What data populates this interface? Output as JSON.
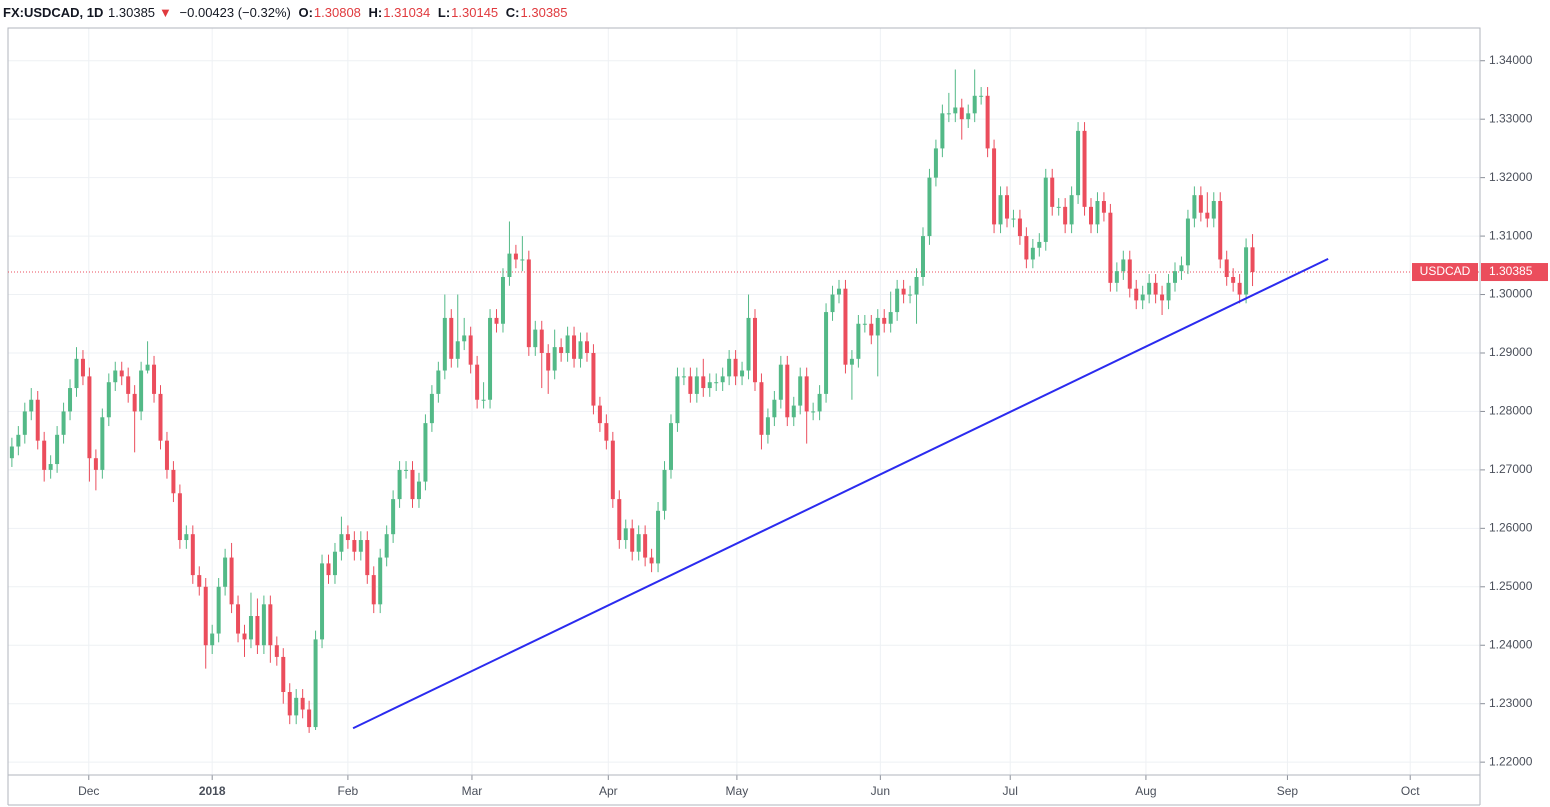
{
  "chart_data": {
    "type": "candlestick",
    "title": "FX:USDCAD, 1D",
    "last": 1.30385,
    "change": "−0.00423 (−0.32%)",
    "ohlc_labels": [
      "O:",
      "H:",
      "L:",
      "C:"
    ],
    "ohlc": [
      1.30808,
      1.31034,
      1.30145,
      1.30385
    ],
    "up_color": "#53b987",
    "down_color": "#eb4d5c",
    "grid": true,
    "ylim": [
      1.2178,
      1.3456
    ],
    "yticks": [
      {
        "value": 1.22,
        "label": "1.22000"
      },
      {
        "value": 1.23,
        "label": "1.23000"
      },
      {
        "value": 1.24,
        "label": "1.24000"
      },
      {
        "value": 1.25,
        "label": "1.25000"
      },
      {
        "value": 1.26,
        "label": "1.26000"
      },
      {
        "value": 1.27,
        "label": "1.27000"
      },
      {
        "value": 1.28,
        "label": "1.28000"
      },
      {
        "value": 1.29,
        "label": "1.29000"
      },
      {
        "value": 1.3,
        "label": "1.30000"
      },
      {
        "value": 1.31,
        "label": "1.31000"
      },
      {
        "value": 1.32,
        "label": "1.32000"
      },
      {
        "value": 1.33,
        "label": "1.33000"
      },
      {
        "value": 1.34,
        "label": "1.34000"
      }
    ],
    "xlim": [
      -0.6,
      227.2
    ],
    "xticks": [
      {
        "value": 11.9,
        "label": "Dec"
      },
      {
        "value": 31.0,
        "label": "2018"
      },
      {
        "value": 52.0,
        "label": "Feb"
      },
      {
        "value": 71.2,
        "label": "Mar"
      },
      {
        "value": 92.3,
        "label": "Apr"
      },
      {
        "value": 112.2,
        "label": "May"
      },
      {
        "value": 134.4,
        "label": "Jun"
      },
      {
        "value": 154.5,
        "label": "Jul"
      },
      {
        "value": 175.5,
        "label": "Aug"
      },
      {
        "value": 197.4,
        "label": "Sep"
      },
      {
        "value": 216.4,
        "label": "Oct"
      }
    ],
    "open": [
      1.272,
      1.274,
      1.276,
      1.28,
      1.282,
      1.275,
      1.27,
      1.271,
      1.276,
      1.28,
      1.284,
      1.289,
      1.286,
      1.272,
      1.27,
      1.279,
      1.285,
      1.287,
      1.286,
      1.283,
      1.28,
      1.287,
      1.288,
      1.283,
      1.275,
      1.27,
      1.266,
      1.258,
      1.259,
      1.252,
      1.25,
      1.24,
      1.242,
      1.25,
      1.255,
      1.247,
      1.242,
      1.241,
      1.245,
      1.24,
      1.247,
      1.24,
      1.238,
      1.232,
      1.228,
      1.231,
      1.229,
      1.226,
      1.241,
      1.254,
      1.252,
      1.256,
      1.259,
      1.258,
      1.256,
      1.258,
      1.252,
      1.247,
      1.255,
      1.259,
      1.265,
      1.27,
      1.27,
      1.265,
      1.268,
      1.278,
      1.283,
      1.287,
      1.296,
      1.289,
      1.292,
      1.293,
      1.288,
      1.282,
      1.282,
      1.296,
      1.295,
      1.303,
      1.307,
      1.306,
      1.306,
      1.291,
      1.294,
      1.29,
      1.287,
      1.291,
      1.29,
      1.293,
      1.289,
      1.292,
      1.29,
      1.281,
      1.278,
      1.275,
      1.265,
      1.258,
      1.26,
      1.256,
      1.259,
      1.255,
      1.254,
      1.263,
      1.27,
      1.278,
      1.286,
      1.286,
      1.283,
      1.286,
      1.284,
      1.285,
      1.285,
      1.286,
      1.289,
      1.286,
      1.287,
      1.296,
      1.285,
      1.276,
      1.279,
      1.282,
      1.288,
      1.279,
      1.281,
      1.286,
      1.28,
      1.28,
      1.283,
      1.297,
      1.3,
      1.301,
      1.288,
      1.289,
      1.295,
      1.295,
      1.293,
      1.296,
      1.295,
      1.297,
      1.301,
      1.3,
      1.3,
      1.303,
      1.31,
      1.32,
      1.325,
      1.331,
      1.331,
      1.332,
      1.33,
      1.331,
      1.334,
      1.334,
      1.325,
      1.312,
      1.317,
      1.313,
      1.313,
      1.31,
      1.306,
      1.308,
      1.309,
      1.32,
      1.315,
      1.315,
      1.312,
      1.317,
      1.328,
      1.315,
      1.312,
      1.316,
      1.314,
      1.302,
      1.304,
      1.306,
      1.301,
      1.299,
      1.3,
      1.302,
      1.3,
      1.299,
      1.302,
      1.304,
      1.305,
      1.313,
      1.317,
      1.314,
      1.313,
      1.316,
      1.306,
      1.303,
      1.302,
      1.3,
      1.30808
    ],
    "high": [
      1.2755,
      1.2775,
      1.2815,
      1.284,
      1.2835,
      1.2765,
      1.2725,
      1.2775,
      1.2815,
      1.2855,
      1.291,
      1.2905,
      1.2875,
      1.2735,
      1.2805,
      1.2865,
      1.2885,
      1.2885,
      1.2875,
      1.2845,
      1.2885,
      1.292,
      1.2895,
      1.2845,
      1.2765,
      1.2715,
      1.2675,
      1.2605,
      1.2605,
      1.2535,
      1.2515,
      1.2435,
      1.2515,
      1.2565,
      1.2575,
      1.2485,
      1.2435,
      1.249,
      1.248,
      1.2485,
      1.2485,
      1.2415,
      1.2395,
      1.2335,
      1.2325,
      1.2325,
      1.2305,
      1.2425,
      1.2555,
      1.2555,
      1.2575,
      1.262,
      1.2605,
      1.2595,
      1.2595,
      1.2595,
      1.2535,
      1.2565,
      1.2605,
      1.2665,
      1.2715,
      1.2715,
      1.2715,
      1.2695,
      1.2795,
      1.2845,
      1.2885,
      1.3,
      1.2975,
      1.3,
      1.296,
      1.2945,
      1.2895,
      1.285,
      1.2975,
      1.2975,
      1.3045,
      1.3125,
      1.3085,
      1.31,
      1.3075,
      1.2955,
      1.2955,
      1.2915,
      1.294,
      1.2925,
      1.2945,
      1.2945,
      1.2935,
      1.2935,
      1.2915,
      1.2825,
      1.2795,
      1.2765,
      1.2665,
      1.2615,
      1.2615,
      1.2605,
      1.2605,
      1.2565,
      1.2645,
      1.2715,
      1.2795,
      1.2875,
      1.2875,
      1.2875,
      1.2875,
      1.289,
      1.2865,
      1.2865,
      1.2875,
      1.2905,
      1.2905,
      1.2885,
      1.3,
      1.2975,
      1.2865,
      1.2805,
      1.2835,
      1.2895,
      1.2895,
      1.2825,
      1.2875,
      1.2875,
      1.2815,
      1.2845,
      1.2985,
      1.3015,
      1.3025,
      1.3025,
      1.2905,
      1.2965,
      1.2965,
      1.2965,
      1.2975,
      1.2975,
      1.3005,
      1.3025,
      1.3025,
      1.3015,
      1.3045,
      1.3115,
      1.3215,
      1.3265,
      1.3325,
      1.3345,
      1.3385,
      1.3335,
      1.3325,
      1.3385,
      1.3355,
      1.3355,
      1.3265,
      1.3185,
      1.3185,
      1.3145,
      1.3145,
      1.3115,
      1.3095,
      1.3105,
      1.3215,
      1.3215,
      1.3165,
      1.3165,
      1.3185,
      1.3295,
      1.3295,
      1.3165,
      1.3175,
      1.3175,
      1.3155,
      1.3055,
      1.3075,
      1.3075,
      1.3025,
      1.3015,
      1.3035,
      1.3035,
      1.3015,
      1.3035,
      1.3055,
      1.3065,
      1.3145,
      1.3185,
      1.3185,
      1.3175,
      1.3175,
      1.3175,
      1.3075,
      1.3045,
      1.3035,
      1.3096,
      1.31034
    ],
    "low": [
      1.2705,
      1.2725,
      1.2745,
      1.2785,
      1.2735,
      1.268,
      1.2685,
      1.2695,
      1.2745,
      1.2785,
      1.2825,
      1.2845,
      1.268,
      1.2665,
      1.2685,
      1.2775,
      1.2835,
      1.2845,
      1.2815,
      1.273,
      1.2785,
      1.2865,
      1.2815,
      1.2735,
      1.2685,
      1.2645,
      1.2565,
      1.2565,
      1.2505,
      1.2485,
      1.236,
      1.2385,
      1.2405,
      1.2485,
      1.2455,
      1.2405,
      1.238,
      1.2395,
      1.2385,
      1.2385,
      1.237,
      1.2365,
      1.23,
      1.2265,
      1.2265,
      1.2275,
      1.225,
      1.2255,
      1.2395,
      1.2505,
      1.2505,
      1.2545,
      1.2565,
      1.2545,
      1.2545,
      1.2505,
      1.2455,
      1.2455,
      1.2535,
      1.2575,
      1.2635,
      1.2685,
      1.2635,
      1.2635,
      1.2665,
      1.2765,
      1.2815,
      1.2855,
      1.2875,
      1.2875,
      1.2905,
      1.2865,
      1.2805,
      1.2805,
      1.2805,
      1.2935,
      1.2935,
      1.3015,
      1.3045,
      1.304,
      1.2895,
      1.2895,
      1.284,
      1.283,
      1.2855,
      1.2885,
      1.2885,
      1.2875,
      1.2875,
      1.2885,
      1.2795,
      1.2765,
      1.2735,
      1.2635,
      1.2565,
      1.2565,
      1.2545,
      1.2545,
      1.2535,
      1.2525,
      1.2525,
      1.2615,
      1.2685,
      1.2765,
      1.2845,
      1.2815,
      1.2815,
      1.2825,
      1.2825,
      1.2835,
      1.2835,
      1.2845,
      1.2845,
      1.2845,
      1.2855,
      1.2835,
      1.2735,
      1.2745,
      1.2775,
      1.2805,
      1.2775,
      1.2775,
      1.2795,
      1.2745,
      1.2785,
      1.2785,
      1.2815,
      1.2955,
      1.2985,
      1.2865,
      1.282,
      1.2875,
      1.2935,
      1.2915,
      1.286,
      1.2935,
      1.2935,
      1.2955,
      1.2985,
      1.2985,
      1.295,
      1.3015,
      1.3085,
      1.3185,
      1.3235,
      1.3295,
      1.3295,
      1.3265,
      1.3285,
      1.3295,
      1.3325,
      1.3235,
      1.3105,
      1.3105,
      1.3115,
      1.3115,
      1.3085,
      1.3045,
      1.3045,
      1.3065,
      1.3075,
      1.3135,
      1.3135,
      1.3105,
      1.3105,
      1.3155,
      1.3135,
      1.3105,
      1.3105,
      1.3125,
      1.3005,
      1.3005,
      1.3025,
      1.2995,
      1.2975,
      1.2975,
      1.2985,
      1.2985,
      1.2965,
      1.2975,
      1.3005,
      1.3025,
      1.3035,
      1.3115,
      1.3125,
      1.3115,
      1.3115,
      1.3045,
      1.3015,
      1.3005,
      1.2985,
      1.2985,
      1.30145
    ],
    "close": [
      1.274,
      1.276,
      1.28,
      1.282,
      1.275,
      1.27,
      1.271,
      1.276,
      1.28,
      1.284,
      1.289,
      1.286,
      1.272,
      1.27,
      1.279,
      1.285,
      1.287,
      1.286,
      1.283,
      1.28,
      1.287,
      1.288,
      1.283,
      1.275,
      1.27,
      1.266,
      1.258,
      1.259,
      1.252,
      1.25,
      1.24,
      1.242,
      1.25,
      1.255,
      1.247,
      1.242,
      1.241,
      1.245,
      1.24,
      1.247,
      1.24,
      1.238,
      1.232,
      1.228,
      1.231,
      1.229,
      1.226,
      1.241,
      1.254,
      1.252,
      1.256,
      1.259,
      1.258,
      1.256,
      1.258,
      1.252,
      1.247,
      1.255,
      1.259,
      1.265,
      1.27,
      1.27,
      1.265,
      1.268,
      1.278,
      1.283,
      1.287,
      1.296,
      1.289,
      1.292,
      1.293,
      1.288,
      1.282,
      1.282,
      1.296,
      1.295,
      1.303,
      1.307,
      1.306,
      1.306,
      1.291,
      1.294,
      1.29,
      1.287,
      1.291,
      1.29,
      1.293,
      1.289,
      1.292,
      1.29,
      1.281,
      1.278,
      1.275,
      1.265,
      1.258,
      1.26,
      1.256,
      1.259,
      1.255,
      1.254,
      1.263,
      1.27,
      1.278,
      1.286,
      1.286,
      1.283,
      1.286,
      1.284,
      1.285,
      1.285,
      1.286,
      1.289,
      1.286,
      1.287,
      1.296,
      1.285,
      1.276,
      1.279,
      1.282,
      1.288,
      1.279,
      1.281,
      1.286,
      1.28,
      1.28,
      1.283,
      1.297,
      1.3,
      1.301,
      1.288,
      1.289,
      1.295,
      1.295,
      1.293,
      1.296,
      1.295,
      1.297,
      1.301,
      1.3,
      1.3,
      1.303,
      1.31,
      1.32,
      1.325,
      1.331,
      1.331,
      1.332,
      1.33,
      1.331,
      1.334,
      1.334,
      1.325,
      1.312,
      1.317,
      1.313,
      1.313,
      1.31,
      1.306,
      1.308,
      1.309,
      1.32,
      1.315,
      1.315,
      1.312,
      1.317,
      1.328,
      1.315,
      1.312,
      1.316,
      1.314,
      1.302,
      1.304,
      1.306,
      1.301,
      1.299,
      1.3,
      1.302,
      1.3,
      1.299,
      1.302,
      1.304,
      1.305,
      1.313,
      1.317,
      1.314,
      1.313,
      1.316,
      1.306,
      1.303,
      1.302,
      1.3,
      1.30808,
      1.30385
    ],
    "price_line": {
      "name": "USDCAD",
      "value": 1.30385,
      "color": "#eb4d5c"
    },
    "trendline": {
      "x": [
        52.8,
        203.7
      ],
      "values": [
        1.2258,
        1.3061
      ],
      "color": "#2b2bef"
    }
  }
}
